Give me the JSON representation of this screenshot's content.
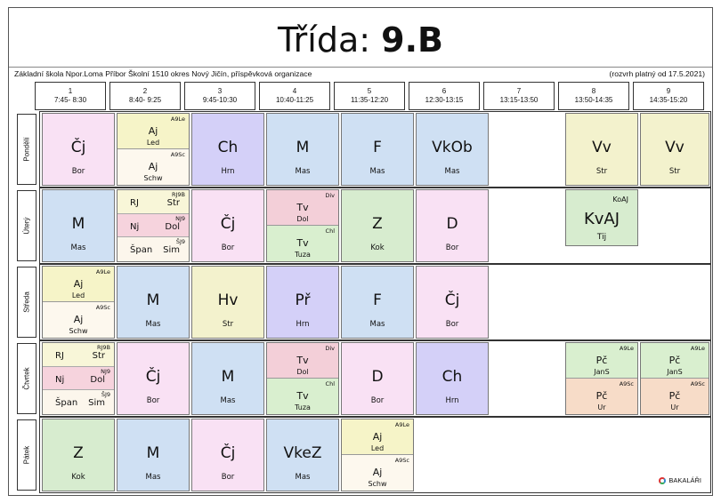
{
  "header": {
    "title_prefix": "Třída:",
    "title_class": "9.B",
    "school": "Základní škola Npor.Loma Příbor Školní 1510 okres Nový Jičín, příspěvková organizace",
    "valid": "(rozvrh platný od 17.5.2021)"
  },
  "periods": [
    {
      "num": "1",
      "time": "7:45- 8:30"
    },
    {
      "num": "2",
      "time": "8:40- 9:25"
    },
    {
      "num": "3",
      "time": "9:45-10:30"
    },
    {
      "num": "4",
      "time": "10:40-11:25"
    },
    {
      "num": "5",
      "time": "11:35-12:20"
    },
    {
      "num": "6",
      "time": "12:30-13:15"
    },
    {
      "num": "7",
      "time": "13:15-13:50"
    },
    {
      "num": "8",
      "time": "13:50-14:35"
    },
    {
      "num": "9",
      "time": "14:35-15:20"
    }
  ],
  "days": [
    {
      "label": "Pondělí"
    },
    {
      "label": "Úterý"
    },
    {
      "label": "Středa"
    },
    {
      "label": "Čtvrtek"
    },
    {
      "label": "Pátek"
    }
  ],
  "lessons": {
    "mon": {
      "p1": {
        "subject": "Čj",
        "teacher": "Bor"
      },
      "p2a": {
        "group": "A9Le",
        "subject": "Aj",
        "teacher": "Led"
      },
      "p2b": {
        "group": "A9Sc",
        "subject": "Aj",
        "teacher": "Schw"
      },
      "p3": {
        "subject": "Ch",
        "teacher": "Hrn"
      },
      "p4": {
        "subject": "M",
        "teacher": "Mas"
      },
      "p5": {
        "subject": "F",
        "teacher": "Mas"
      },
      "p6": {
        "subject": "VkOb",
        "teacher": "Mas"
      },
      "p8": {
        "subject": "Vv",
        "teacher": "Str"
      },
      "p9": {
        "subject": "Vv",
        "teacher": "Str"
      }
    },
    "tue": {
      "p1": {
        "subject": "M",
        "teacher": "Mas"
      },
      "p2a": {
        "group": "RJ9B",
        "subject": "RJ",
        "teacher": "Str"
      },
      "p2b": {
        "group": "NJ9",
        "subject": "Nj",
        "teacher": "Dol"
      },
      "p2c": {
        "group": "ŠJ9",
        "subject": "Špan",
        "teacher": "Sim"
      },
      "p3": {
        "subject": "Čj",
        "teacher": "Bor"
      },
      "p4a": {
        "group": "Div",
        "subject": "Tv",
        "teacher": "Dol"
      },
      "p4b": {
        "group": "Chl",
        "subject": "Tv",
        "teacher": "Tuza"
      },
      "p5": {
        "subject": "Z",
        "teacher": "Kok"
      },
      "p6": {
        "subject": "D",
        "teacher": "Bor"
      },
      "p8": {
        "group": "KoAJ",
        "subject": "KvAJ",
        "teacher": "Tij"
      }
    },
    "wed": {
      "p1a": {
        "group": "A9Le",
        "subject": "Aj",
        "teacher": "Led"
      },
      "p1b": {
        "group": "A9Sc",
        "subject": "Aj",
        "teacher": "Schw"
      },
      "p2": {
        "subject": "M",
        "teacher": "Mas"
      },
      "p3": {
        "subject": "Hv",
        "teacher": "Str"
      },
      "p4": {
        "subject": "Př",
        "teacher": "Hrn"
      },
      "p5": {
        "subject": "F",
        "teacher": "Mas"
      },
      "p6": {
        "subject": "Čj",
        "teacher": "Bor"
      }
    },
    "thu": {
      "p1a": {
        "group": "RJ9B",
        "subject": "RJ",
        "teacher": "Str"
      },
      "p1b": {
        "group": "NJ9",
        "subject": "Nj",
        "teacher": "Dol"
      },
      "p1c": {
        "group": "ŠJ9",
        "subject": "Špan",
        "teacher": "Sim"
      },
      "p2": {
        "subject": "Čj",
        "teacher": "Bor"
      },
      "p3": {
        "subject": "M",
        "teacher": "Mas"
      },
      "p4a": {
        "group": "Div",
        "subject": "Tv",
        "teacher": "Dol"
      },
      "p4b": {
        "group": "Chl",
        "subject": "Tv",
        "teacher": "Tuza"
      },
      "p5": {
        "subject": "D",
        "teacher": "Bor"
      },
      "p6": {
        "subject": "Ch",
        "teacher": "Hrn"
      },
      "p8a": {
        "group": "A9Le",
        "subject": "Pč",
        "teacher": "JanS"
      },
      "p8b": {
        "group": "A9Sc",
        "subject": "Pč",
        "teacher": "Ur"
      },
      "p9a": {
        "group": "A9Le",
        "subject": "Pč",
        "teacher": "JanS"
      },
      "p9b": {
        "group": "A9Sc",
        "subject": "Pč",
        "teacher": "Ur"
      }
    },
    "fri": {
      "p1": {
        "subject": "Z",
        "teacher": "Kok"
      },
      "p2": {
        "subject": "M",
        "teacher": "Mas"
      },
      "p3": {
        "subject": "Čj",
        "teacher": "Bor"
      },
      "p4": {
        "subject": "VkeZ",
        "teacher": "Mas"
      },
      "p5a": {
        "group": "A9Le",
        "subject": "Aj",
        "teacher": "Led"
      },
      "p5b": {
        "group": "A9Sc",
        "subject": "Aj",
        "teacher": "Schw"
      }
    }
  },
  "colors": {
    "cj": "#f9e1f4",
    "aj_top": "#f6f4c8",
    "aj_bottom": "#fdf8ee",
    "ch": "#d4d0f8",
    "m": "#cfe0f3",
    "vv": "#f3f2cd",
    "lang_top": "#f8f6d8",
    "lang_mid": "#f6d3dd",
    "lang_bot": "#fcf6ec",
    "tv_top": "#f3cfd8",
    "tv_bot": "#d9efcf",
    "z": "#d7eccf",
    "hv": "#f3f2cd",
    "pr": "#d4d0f8",
    "pc_top": "#d9efcf",
    "pc_bot": "#f7dcc8"
  },
  "footer": {
    "brand": "BAKALÁŘI",
    "logo_icon": "bakalari-logo-icon"
  }
}
